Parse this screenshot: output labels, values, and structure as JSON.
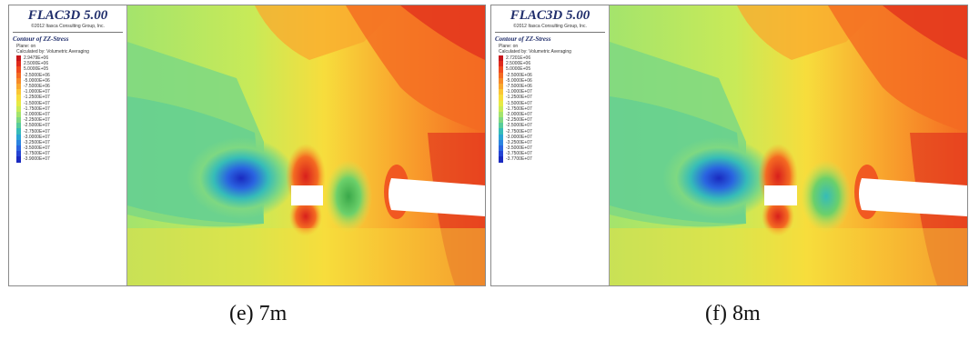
{
  "panels": [
    {
      "title": "FLAC3D 5.00",
      "company": "©2012 Itasca Consulting Group, Inc.",
      "contour_title": "Contour of ZZ-Stress",
      "plane": "Plane: on",
      "calculated": "Calculated by: Volumetric Averaging",
      "scale": [
        "2.9479E+06",
        "2.5000E+06",
        "5.0000E+05",
        "-2.5000E+06",
        "-5.0000E+06",
        "-7.5000E+06",
        "-1.0000E+07",
        "-1.2500E+07",
        "-1.5000E+07",
        "-1.7500E+07",
        "-2.0000E+07",
        "-2.2500E+07",
        "-2.5000E+07",
        "-2.7500E+07",
        "-3.0000E+07",
        "-3.2500E+07",
        "-3.5000E+07",
        "-3.7500E+07",
        "-3.9000E+07"
      ],
      "caption": "(e) 7m"
    },
    {
      "title": "FLAC3D 5.00",
      "company": "©2012 Itasca Consulting Group, Inc.",
      "contour_title": "Contour of ZZ-Stress",
      "plane": "Plane: on",
      "calculated": "Calculated by: Volumetric Averaging",
      "scale": [
        "2.7201E+06",
        "2.5000E+06",
        "5.0000E+05",
        "-2.5000E+06",
        "-5.0000E+06",
        "-7.5000E+06",
        "-1.0000E+07",
        "-1.2500E+07",
        "-1.5000E+07",
        "-1.7500E+07",
        "-2.0000E+07",
        "-2.2500E+07",
        "-2.5000E+07",
        "-2.7500E+07",
        "-3.0000E+07",
        "-3.2500E+07",
        "-3.5000E+07",
        "-3.7500E+07",
        "-3.7700E+07"
      ],
      "caption": "(f) 8m"
    }
  ],
  "colors": {
    "scale": [
      "#c8161a",
      "#e02a1c",
      "#f04a1e",
      "#f46a22",
      "#f78a28",
      "#f9a82e",
      "#fbc634",
      "#f7dd3c",
      "#e6ea44",
      "#c8ea58",
      "#a4e46c",
      "#7ed882",
      "#58cc9a",
      "#36bcb8",
      "#2aa4d4",
      "#2a84e0",
      "#2a64e0",
      "#2444d4",
      "#1a2ac0"
    ],
    "title_text": "#1f2d6b",
    "panel_border": "#8a8a8a"
  }
}
